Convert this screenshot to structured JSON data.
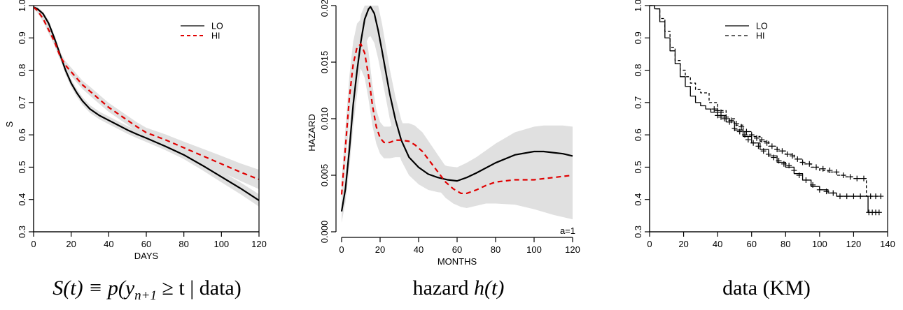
{
  "captions": {
    "survival_prefix": "S",
    "survival_rest": "(t) ≡ p(y",
    "survival_sub": "n+1",
    "survival_tail": " ≥ t | data)",
    "hazard_text": "hazard ",
    "hazard_fn": "h(t)",
    "km_text": "data (KM)"
  },
  "colors": {
    "lo": "#000000",
    "hi": "#e00000",
    "band": "#e0e0e0"
  },
  "chart_data": [
    {
      "type": "line",
      "xlabel": "DAYS",
      "ylabel": "S",
      "xlim": [
        0,
        120
      ],
      "ylim": [
        0.3,
        1.0
      ],
      "xticks": [
        0,
        20,
        40,
        60,
        80,
        100,
        120
      ],
      "yticks": [
        0.3,
        0.4,
        0.5,
        0.6,
        0.7,
        0.8,
        0.9,
        1.0
      ],
      "ytick_labels": [
        "0.3",
        "0.4",
        "0.5",
        "0.6",
        "0.7",
        "0.8",
        "0.9",
        "1.0"
      ],
      "legend": {
        "position": "top-right",
        "entries": [
          "LO",
          "HI"
        ]
      },
      "series": [
        {
          "name": "LO",
          "style": "solid",
          "color": "#000000",
          "x": [
            0,
            2,
            5,
            8,
            11,
            14,
            17,
            20,
            23,
            26,
            30,
            35,
            40,
            45,
            50,
            55,
            60,
            70,
            80,
            90,
            100,
            110,
            120
          ],
          "y": [
            0.995,
            0.99,
            0.975,
            0.945,
            0.9,
            0.85,
            0.8,
            0.76,
            0.73,
            0.705,
            0.68,
            0.66,
            0.645,
            0.63,
            0.615,
            0.602,
            0.59,
            0.565,
            0.538,
            0.505,
            0.47,
            0.435,
            0.397
          ],
          "band_lower": [
            0.99,
            0.985,
            0.968,
            0.935,
            0.89,
            0.838,
            0.787,
            0.748,
            0.718,
            0.693,
            0.668,
            0.648,
            0.633,
            0.618,
            0.603,
            0.59,
            0.578,
            0.553,
            0.525,
            0.49,
            0.453,
            0.417,
            0.378
          ],
          "band_upper": [
            1.0,
            0.995,
            0.982,
            0.955,
            0.91,
            0.862,
            0.813,
            0.772,
            0.742,
            0.717,
            0.692,
            0.672,
            0.657,
            0.642,
            0.627,
            0.614,
            0.602,
            0.577,
            0.551,
            0.52,
            0.487,
            0.453,
            0.416
          ]
        },
        {
          "name": "HI",
          "style": "dashed",
          "color": "#e00000",
          "x": [
            0,
            2,
            5,
            8,
            11,
            14,
            17,
            20,
            23,
            26,
            30,
            35,
            40,
            45,
            50,
            55,
            60,
            70,
            80,
            90,
            100,
            110,
            120
          ],
          "y": [
            0.995,
            0.985,
            0.96,
            0.925,
            0.89,
            0.845,
            0.815,
            0.795,
            0.775,
            0.755,
            0.735,
            0.71,
            0.685,
            0.665,
            0.645,
            0.625,
            0.607,
            0.585,
            0.56,
            0.535,
            0.51,
            0.485,
            0.462
          ],
          "band_lower": [
            0.99,
            0.978,
            0.951,
            0.914,
            0.878,
            0.833,
            0.802,
            0.782,
            0.762,
            0.742,
            0.721,
            0.696,
            0.671,
            0.651,
            0.631,
            0.611,
            0.592,
            0.568,
            0.541,
            0.513,
            0.485,
            0.458,
            0.432
          ],
          "band_upper": [
            1.0,
            0.992,
            0.969,
            0.936,
            0.902,
            0.857,
            0.828,
            0.808,
            0.788,
            0.768,
            0.749,
            0.724,
            0.699,
            0.679,
            0.659,
            0.639,
            0.622,
            0.602,
            0.579,
            0.557,
            0.535,
            0.512,
            0.492
          ]
        }
      ]
    },
    {
      "type": "line",
      "xlabel": "MONTHS",
      "ylabel": "HAZARD",
      "xlim": [
        0,
        120
      ],
      "ylim": [
        0.0,
        0.02
      ],
      "xticks": [
        0,
        20,
        40,
        60,
        80,
        100,
        120
      ],
      "yticks": [
        0.0,
        0.005,
        0.01,
        0.015,
        0.02
      ],
      "ytick_labels": [
        "0.000",
        "0.005",
        "0.010",
        "0.015",
        "0.020"
      ],
      "annotation": "a=1",
      "series": [
        {
          "name": "LO",
          "style": "solid",
          "color": "#000000",
          "x": [
            0,
            2,
            4,
            6,
            8,
            10,
            12,
            14,
            15,
            17,
            19,
            21,
            23,
            25,
            28,
            31,
            35,
            40,
            45,
            50,
            55,
            60,
            65,
            70,
            80,
            90,
            100,
            105,
            110,
            115,
            120
          ],
          "y": [
            0.0018,
            0.0038,
            0.0072,
            0.0112,
            0.0142,
            0.0168,
            0.0188,
            0.0197,
            0.0199,
            0.0193,
            0.0178,
            0.016,
            0.0141,
            0.0122,
            0.0099,
            0.0081,
            0.0066,
            0.0057,
            0.0051,
            0.0048,
            0.0046,
            0.0045,
            0.0048,
            0.0052,
            0.0061,
            0.0068,
            0.0071,
            0.0071,
            0.007,
            0.0069,
            0.0067
          ],
          "band_lower": [
            0.0008,
            0.0026,
            0.0056,
            0.0092,
            0.0121,
            0.0146,
            0.0164,
            0.0172,
            0.0173,
            0.0167,
            0.0153,
            0.0136,
            0.0118,
            0.01,
            0.0079,
            0.0063,
            0.005,
            0.0042,
            0.0037,
            0.0035,
            0.0034,
            0.0033,
            0.0035,
            0.0038,
            0.0044,
            0.0048,
            0.0049,
            0.0049,
            0.0047,
            0.0045,
            0.0043
          ],
          "band_upper": [
            0.003,
            0.0052,
            0.0088,
            0.0132,
            0.0165,
            0.0192,
            0.0212,
            0.0222,
            0.0225,
            0.0219,
            0.0203,
            0.0184,
            0.0164,
            0.0144,
            0.0119,
            0.0099,
            0.0082,
            0.0072,
            0.0065,
            0.0061,
            0.0058,
            0.0057,
            0.0061,
            0.0066,
            0.0078,
            0.0088,
            0.0093,
            0.0094,
            0.0094,
            0.0094,
            0.0093
          ]
        },
        {
          "name": "HI",
          "style": "dashed",
          "color": "#e00000",
          "x": [
            0,
            2,
            4,
            6,
            8,
            10,
            12,
            14,
            16,
            18,
            20,
            22,
            25,
            28,
            31,
            35,
            38,
            42,
            46,
            50,
            54,
            58,
            62,
            65,
            70,
            75,
            80,
            90,
            100,
            110,
            120
          ],
          "y": [
            0.0033,
            0.0075,
            0.0118,
            0.0148,
            0.0163,
            0.0166,
            0.0158,
            0.0138,
            0.0112,
            0.0093,
            0.0083,
            0.0079,
            0.0079,
            0.0081,
            0.0081,
            0.008,
            0.0077,
            0.0071,
            0.0062,
            0.0053,
            0.0044,
            0.0038,
            0.0034,
            0.0034,
            0.0037,
            0.0041,
            0.0044,
            0.0046,
            0.0046,
            0.0048,
            0.005
          ],
          "band_lower": [
            0.002,
            0.0058,
            0.0099,
            0.0128,
            0.0142,
            0.0144,
            0.0136,
            0.0117,
            0.0094,
            0.0078,
            0.0069,
            0.0065,
            0.0065,
            0.0066,
            0.0066,
            0.0064,
            0.006,
            0.0054,
            0.0046,
            0.0038,
            0.003,
            0.0025,
            0.0022,
            0.0021,
            0.0023,
            0.0025,
            0.0025,
            0.0024,
            0.002,
            0.0015,
            0.0011
          ],
          "band_upper": [
            0.0046,
            0.0092,
            0.0137,
            0.0168,
            0.0184,
            0.0188,
            0.018,
            0.0159,
            0.013,
            0.0108,
            0.0097,
            0.0093,
            0.0093,
            0.0096,
            0.0096,
            0.0096,
            0.0094,
            0.0088,
            0.0078,
            0.0068,
            0.0058,
            0.0051,
            0.0046,
            0.0047,
            0.0051,
            0.0057,
            0.0063,
            0.0068,
            0.0072,
            0.0081,
            0.0089
          ]
        }
      ]
    },
    {
      "type": "line",
      "xlabel": "",
      "ylabel": "",
      "xlim": [
        0,
        140
      ],
      "ylim": [
        0.3,
        1.0
      ],
      "xticks": [
        0,
        20,
        40,
        60,
        80,
        100,
        120,
        140
      ],
      "xtick_labels": [
        "0",
        "20",
        "40",
        "60",
        "80",
        "100",
        "120",
        "140"
      ],
      "yticks": [
        0.3,
        0.4,
        0.5,
        0.6,
        0.7,
        0.8,
        0.9,
        1.0
      ],
      "ytick_labels": [
        "0.3",
        "0.4",
        "0.5",
        "0.6",
        "0.7",
        "0.8",
        "0.9",
        "1.0"
      ],
      "legend": {
        "position": "top-right",
        "entries": [
          "LO",
          "HI"
        ]
      },
      "series": [
        {
          "name": "LO",
          "style": "solid-step",
          "color": "#000000",
          "x": [
            0,
            3,
            6,
            9,
            12,
            15,
            18,
            21,
            24,
            27,
            30,
            33,
            36,
            40,
            45,
            50,
            55,
            60,
            65,
            70,
            75,
            80,
            85,
            90,
            95,
            100,
            105,
            110,
            115,
            120,
            125,
            128,
            128.5,
            135
          ],
          "y": [
            1.0,
            0.99,
            0.95,
            0.9,
            0.86,
            0.82,
            0.78,
            0.75,
            0.72,
            0.7,
            0.69,
            0.68,
            0.67,
            0.66,
            0.64,
            0.615,
            0.595,
            0.575,
            0.555,
            0.535,
            0.515,
            0.5,
            0.48,
            0.46,
            0.44,
            0.43,
            0.42,
            0.41,
            0.41,
            0.41,
            0.41,
            0.41,
            0.36,
            0.36
          ],
          "censor_x": [
            40,
            42,
            44,
            47,
            50,
            53,
            56,
            58,
            61,
            64,
            67,
            70,
            73,
            76,
            79,
            82,
            85,
            88,
            92,
            96,
            100,
            104,
            108,
            112,
            116,
            120,
            124,
            129,
            131,
            133,
            135
          ],
          "censor_y": [
            0.66,
            0.655,
            0.65,
            0.64,
            0.62,
            0.61,
            0.6,
            0.585,
            0.575,
            0.565,
            0.55,
            0.54,
            0.53,
            0.52,
            0.51,
            0.505,
            0.49,
            0.475,
            0.46,
            0.445,
            0.43,
            0.425,
            0.42,
            0.41,
            0.41,
            0.41,
            0.41,
            0.36,
            0.36,
            0.36,
            0.36
          ]
        },
        {
          "name": "HI",
          "style": "dashed-step",
          "color": "#000000",
          "x": [
            0,
            3,
            6,
            9,
            12,
            15,
            18,
            21,
            24,
            27,
            30,
            35,
            40,
            45,
            50,
            55,
            60,
            65,
            70,
            75,
            80,
            85,
            90,
            95,
            100,
            105,
            110,
            115,
            120,
            125,
            127,
            127.5,
            135
          ],
          "y": [
            1.0,
            0.99,
            0.96,
            0.92,
            0.87,
            0.83,
            0.8,
            0.78,
            0.76,
            0.74,
            0.73,
            0.7,
            0.675,
            0.65,
            0.63,
            0.61,
            0.595,
            0.58,
            0.565,
            0.55,
            0.54,
            0.525,
            0.51,
            0.5,
            0.49,
            0.485,
            0.475,
            0.47,
            0.465,
            0.465,
            0.465,
            0.41,
            0.41
          ],
          "censor_x": [
            38,
            40,
            42,
            45,
            48,
            51,
            54,
            57,
            60,
            63,
            66,
            69,
            72,
            75,
            78,
            81,
            84,
            87,
            90,
            94,
            98,
            102,
            106,
            110,
            114,
            118,
            122,
            126,
            130,
            133,
            136
          ],
          "censor_y": [
            0.68,
            0.675,
            0.67,
            0.655,
            0.645,
            0.635,
            0.625,
            0.61,
            0.6,
            0.59,
            0.585,
            0.575,
            0.565,
            0.555,
            0.55,
            0.54,
            0.535,
            0.525,
            0.515,
            0.51,
            0.5,
            0.495,
            0.49,
            0.485,
            0.475,
            0.47,
            0.465,
            0.465,
            0.41,
            0.41,
            0.41
          ]
        }
      ]
    }
  ]
}
